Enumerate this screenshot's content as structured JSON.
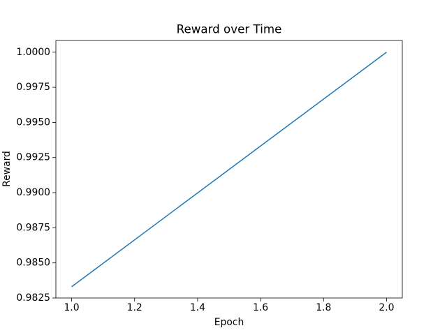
{
  "chart_data": {
    "type": "line",
    "title": "Reward over Time",
    "x_label": "Epoch",
    "y_label": "Reward",
    "x": [
      1.0,
      2.0
    ],
    "series": [
      {
        "color": "#1f77b4",
        "values": [
          0.9833,
          1.0
        ]
      }
    ],
    "xlim": [
      0.95,
      2.05
    ],
    "xticks": [
      {
        "value": 1.0,
        "label": "1.0"
      },
      {
        "value": 1.2,
        "label": "1.2"
      },
      {
        "value": 1.4,
        "label": "1.4"
      },
      {
        "value": 1.6,
        "label": "1.6"
      },
      {
        "value": 1.8,
        "label": "1.8"
      },
      {
        "value": 2.0,
        "label": "2.0"
      }
    ],
    "ylim": [
      0.9825,
      1.000833
    ],
    "yticks": [
      0.9825,
      {
        "value": 0.985,
        "label": "0.9850"
      },
      0.9875,
      {
        "value": 0.99,
        "label": "0.9900"
      },
      0.9925,
      {
        "value": 0.995,
        "label": "0.9950"
      },
      0.9975,
      {
        "value": 1.0,
        "label": "1.0000"
      }
    ],
    "grid": false
  }
}
